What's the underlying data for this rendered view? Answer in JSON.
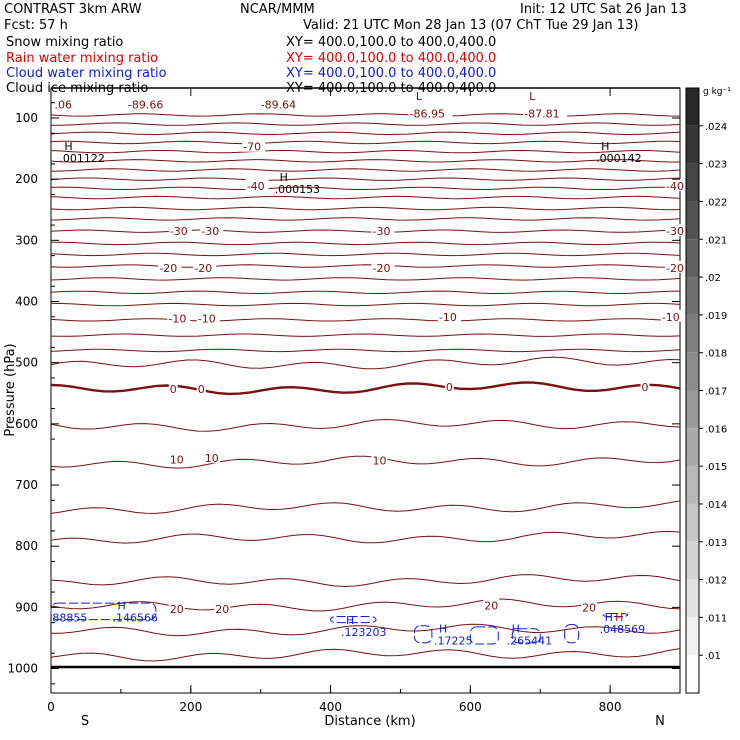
{
  "header": {
    "model": "CONTRAST  3km ARW",
    "org": "NCAR/MMM",
    "init": "Init: 12 UTC Sat 26 Jan 13",
    "fcst": "Fcst:   57 h",
    "valid": "Valid: 21 UTC Mon 28 Jan 13 (07 ChT Tue 29 Jan 13)"
  },
  "fields": [
    {
      "name": "Snow mixing ratio",
      "xy": "XY= 400.0,100.0 to 400.0,400.0",
      "color": "#000000"
    },
    {
      "name": "Rain water mixing ratio",
      "xy": "XY= 400.0,100.0 to 400.0,400.0",
      "color": "#e00000"
    },
    {
      "name": "Cloud water mixing ratio",
      "xy": "XY= 400.0,100.0 to 400.0,400.0",
      "color": "#1020d0"
    },
    {
      "name": "Cloud ice mixing ratio",
      "xy": "XY= 400.0,100.0 to 400.0,400.0",
      "color": "#000000"
    }
  ],
  "chart_data": {
    "type": "contour",
    "xlabel": "Distance (km)",
    "ylabel": "Pressure (hPa)",
    "xlim": [
      0,
      900
    ],
    "ylim": [
      1045,
      65
    ],
    "x_ticks": [
      0,
      200,
      400,
      600,
      800
    ],
    "y_ticks": [
      100,
      200,
      300,
      400,
      500,
      600,
      700,
      800,
      900,
      1000
    ],
    "x_end_labels": {
      "left": "S",
      "right": "N"
    },
    "colorbar": {
      "unit": "g kg⁻¹",
      "ticks": [
        ".024",
        ".023",
        ".022",
        ".021",
        ".02",
        ".019",
        ".018",
        ".017",
        ".016",
        ".015",
        ".014",
        ".013",
        ".012",
        ".011",
        ".01"
      ]
    },
    "temperature_contours": {
      "color": "#7a1010",
      "levels_p": [
        95,
        110,
        125,
        140,
        155,
        170,
        185,
        200,
        215,
        230,
        248,
        265,
        285,
        305,
        323,
        342,
        363,
        385,
        405,
        430,
        455,
        480,
        505,
        545,
        605,
        665,
        740,
        790,
        860,
        900,
        940,
        980
      ],
      "zero_line_p": 545,
      "labels": [
        {
          "x": 110,
          "p": 78,
          "text": "-89.66"
        },
        {
          "x": 300,
          "p": 78,
          "text": "-89.64"
        },
        {
          "x": 513,
          "p": 93,
          "text": "-86.95"
        },
        {
          "x": 677,
          "p": 93,
          "text": "-87.81"
        },
        {
          "x": 5,
          "p": 78,
          "text": ".06"
        },
        {
          "x": 275,
          "p": 147,
          "text": "-70"
        },
        {
          "x": 280,
          "p": 211,
          "text": "-40"
        },
        {
          "x": 880,
          "p": 211,
          "text": "-40"
        },
        {
          "x": 170,
          "p": 285,
          "text": "-30"
        },
        {
          "x": 215,
          "p": 285,
          "text": "-30"
        },
        {
          "x": 460,
          "p": 285,
          "text": "-30"
        },
        {
          "x": 880,
          "p": 285,
          "text": "-30"
        },
        {
          "x": 155,
          "p": 345,
          "text": "-20"
        },
        {
          "x": 205,
          "p": 345,
          "text": "-20"
        },
        {
          "x": 460,
          "p": 345,
          "text": "-20"
        },
        {
          "x": 880,
          "p": 345,
          "text": "-20"
        },
        {
          "x": 168,
          "p": 428,
          "text": "-10"
        },
        {
          "x": 210,
          "p": 428,
          "text": "-10"
        },
        {
          "x": 555,
          "p": 425,
          "text": "-10"
        },
        {
          "x": 874,
          "p": 425,
          "text": "-10"
        },
        {
          "x": 170,
          "p": 543,
          "text": "0"
        },
        {
          "x": 210,
          "p": 543,
          "text": "0"
        },
        {
          "x": 565,
          "p": 540,
          "text": "0"
        },
        {
          "x": 845,
          "p": 540,
          "text": "0"
        },
        {
          "x": 170,
          "p": 658,
          "text": "10"
        },
        {
          "x": 220,
          "p": 656,
          "text": "10"
        },
        {
          "x": 460,
          "p": 660,
          "text": "10"
        },
        {
          "x": 170,
          "p": 903,
          "text": "20"
        },
        {
          "x": 235,
          "p": 903,
          "text": "20"
        },
        {
          "x": 620,
          "p": 897,
          "text": "20"
        },
        {
          "x": 760,
          "p": 900,
          "text": "20"
        }
      ]
    },
    "markers": [
      {
        "x": 12,
        "p": 162,
        "sym": "H",
        "value": ".001122",
        "color": "#000000"
      },
      {
        "x": 780,
        "p": 162,
        "sym": "H",
        "value": ".000142",
        "color": "#000000"
      },
      {
        "x": 320,
        "p": 213,
        "sym": "H",
        "value": ".000153",
        "color": "#000000"
      },
      {
        "x": 515,
        "p": 80,
        "sym": "L",
        "value": "",
        "color": "#7a1010"
      },
      {
        "x": 677,
        "p": 80,
        "sym": "L",
        "value": "",
        "color": "#7a1010"
      },
      {
        "x": 2,
        "p": 913,
        "sym": "",
        "value": "88855",
        "color": "#1020d0"
      },
      {
        "x": 88,
        "p": 913,
        "sym": "H",
        "value": ".146566",
        "color": "#1020d0"
      },
      {
        "x": 415,
        "p": 937,
        "sym": "H",
        "value": ".123203",
        "color": "#1020d0"
      },
      {
        "x": 548,
        "p": 951,
        "sym": "H",
        "value": ".17225",
        "color": "#1020d0"
      },
      {
        "x": 652,
        "p": 951,
        "sym": "H",
        "value": ".265441",
        "color": "#1020d0"
      },
      {
        "x": 785,
        "p": 932,
        "sym": "H",
        "value": ".048569",
        "color": "#1020d0"
      },
      {
        "x": 800,
        "p": 932,
        "sym": "H",
        "value": "",
        "color": "#e00000"
      }
    ]
  }
}
